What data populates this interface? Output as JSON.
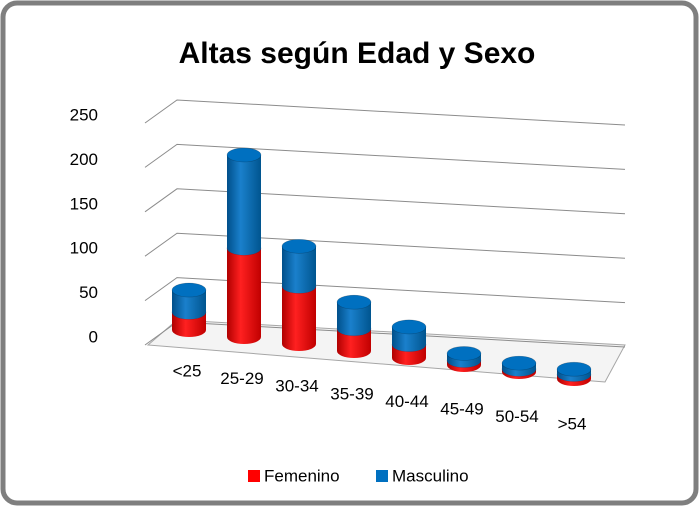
{
  "chart_data": {
    "type": "bar3d_stacked_cylinder",
    "title": "Altas según Edad y Sexo",
    "categories": [
      "<25",
      "25-29",
      "30-34",
      "35-39",
      "40-44",
      "45-49",
      "50-54",
      ">54"
    ],
    "series": [
      {
        "name": "Femenino",
        "color": "#ff0000",
        "values": [
          20,
          100,
          65,
          25,
          15,
          5,
          3,
          5
        ]
      },
      {
        "name": "Masculino",
        "color": "#0070c0",
        "values": [
          25,
          105,
          45,
          30,
          20,
          8,
          7,
          6
        ]
      }
    ],
    "ylim": [
      0,
      250
    ],
    "yticks": [
      0,
      50,
      100,
      150,
      200,
      250
    ],
    "grid": true,
    "legend": "bottom"
  }
}
